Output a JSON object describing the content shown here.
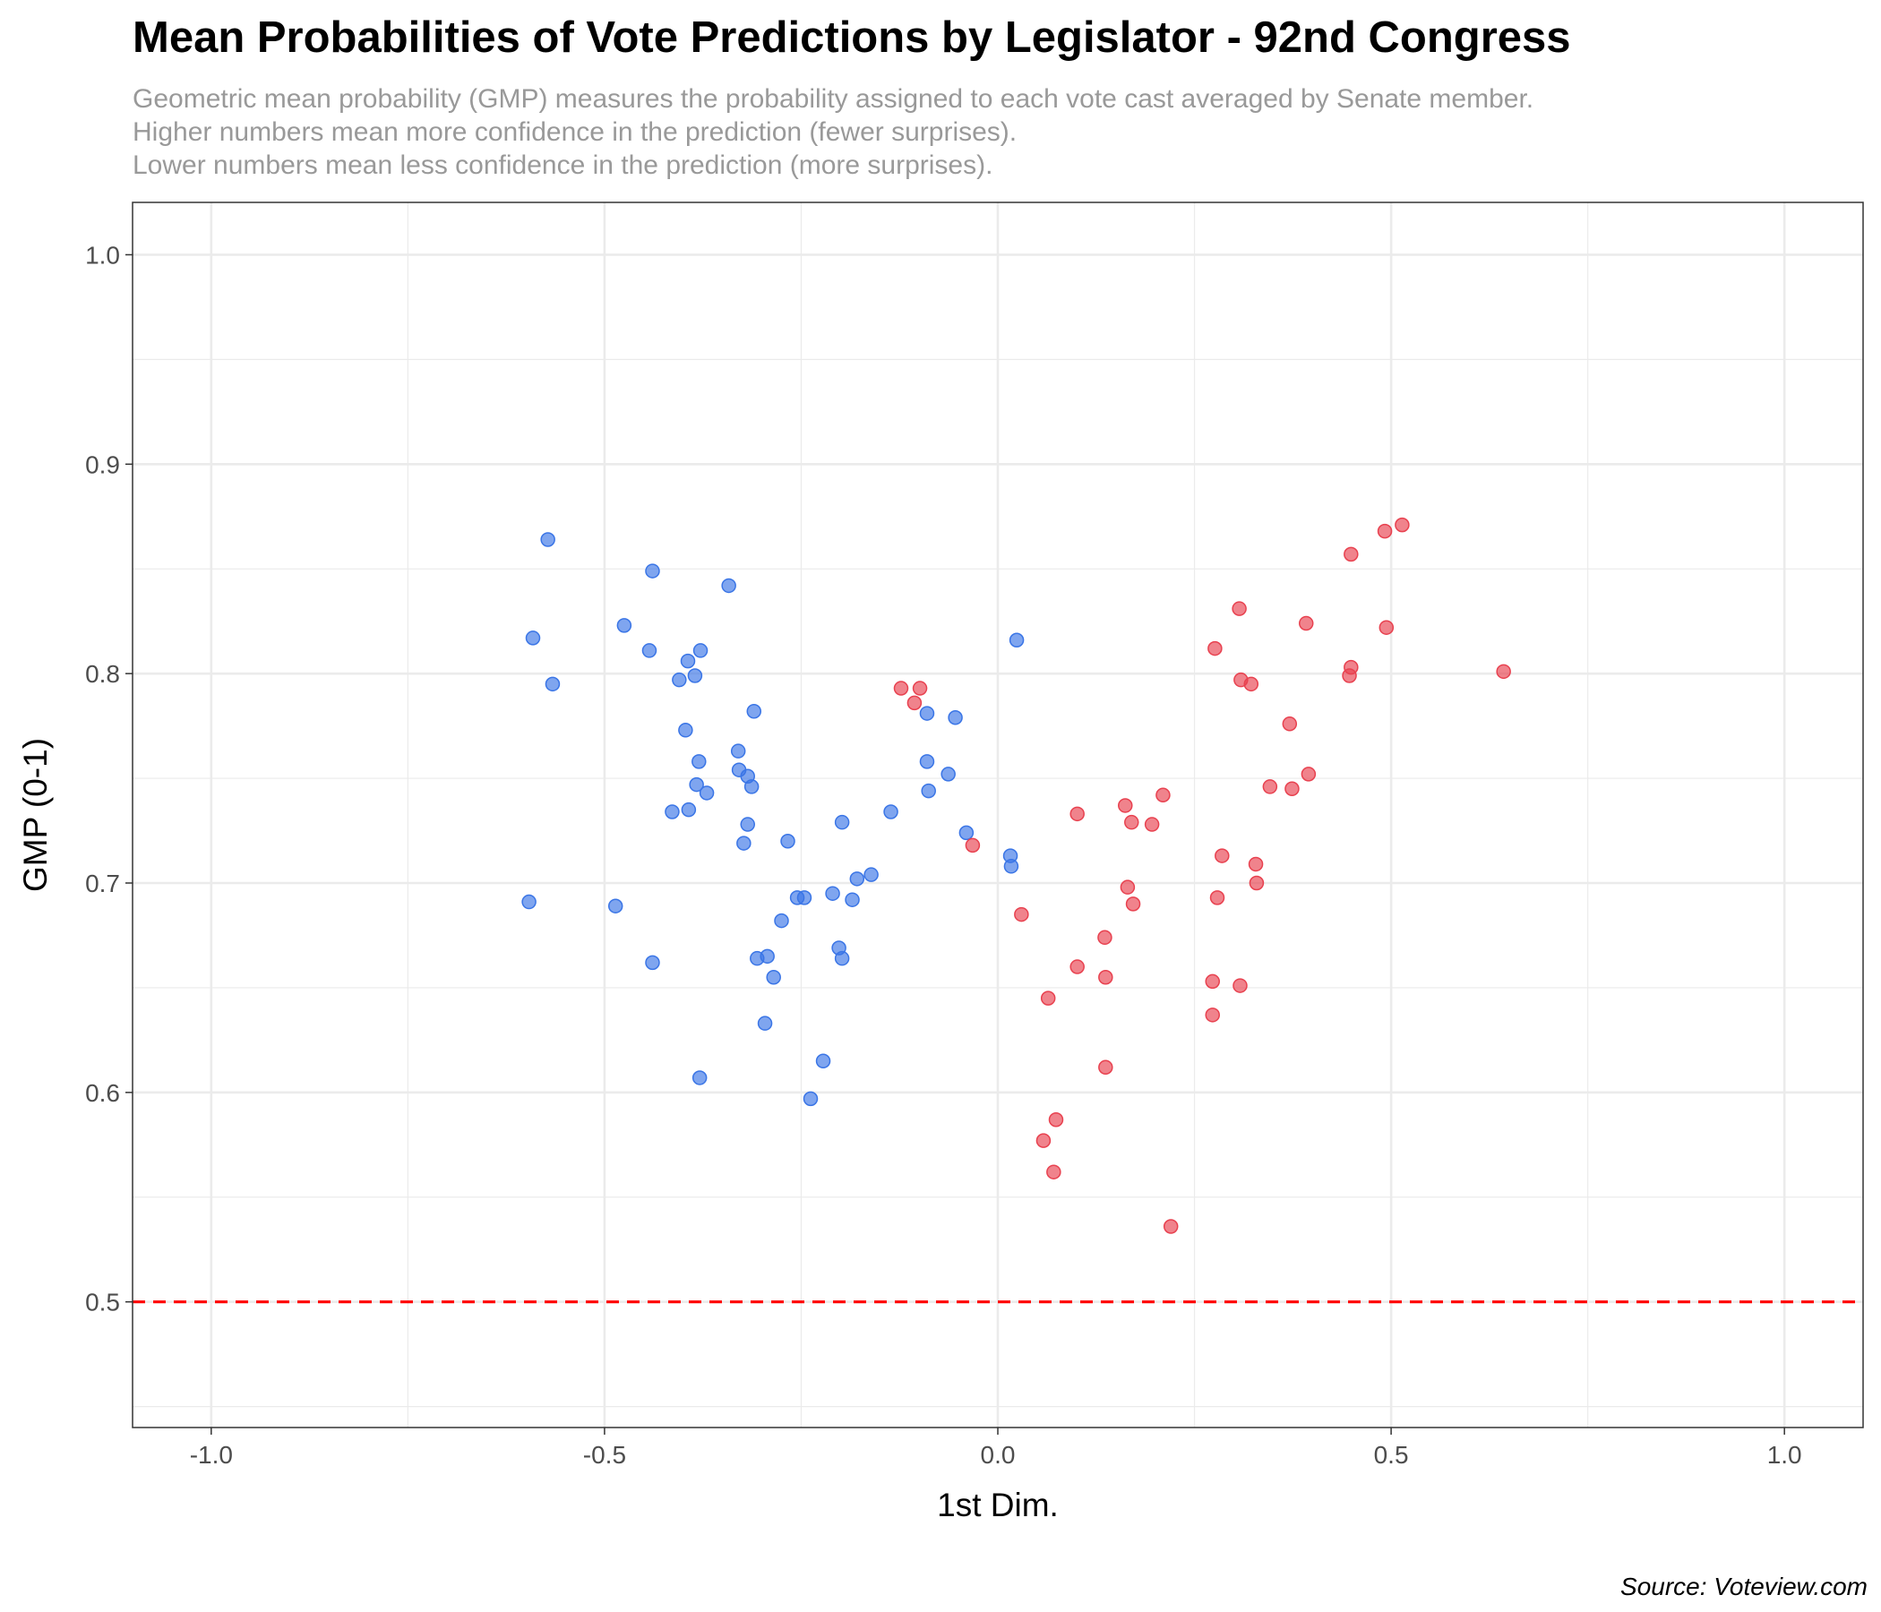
{
  "chart_data": {
    "type": "scatter",
    "title": "Mean Probabilities of Vote Predictions by Legislator - 92nd Congress",
    "subtitle_lines": [
      "Geometric mean probability (GMP) measures the probability assigned to each vote cast averaged by Senate member.",
      "Higher numbers mean more confidence in the prediction (fewer surprises).",
      "Lower numbers mean less confidence in the prediction (more surprises)."
    ],
    "caption": "Source: Voteview.com",
    "xlabel": "1st Dim.",
    "ylabel": "GMP (0-1)",
    "xlim": [
      -1.1,
      1.1
    ],
    "ylim": [
      0.44,
      1.025
    ],
    "x_ticks": [
      -1.0,
      -0.5,
      0.0,
      0.5,
      1.0
    ],
    "x_tick_labels": [
      "-1.0",
      "-0.5",
      "0.0",
      "0.5",
      "1.0"
    ],
    "y_ticks": [
      0.5,
      0.6,
      0.7,
      0.8,
      0.9,
      1.0
    ],
    "y_tick_labels": [
      "0.5",
      "0.6",
      "0.7",
      "0.8",
      "0.9",
      "1.0"
    ],
    "grid": true,
    "reference_line": {
      "y": 0.5,
      "color": "#ff0000",
      "style": "dashed"
    },
    "series": [
      {
        "color": "#3a75e6",
        "points": [
          [
            -0.572,
            0.864
          ],
          [
            -0.591,
            0.817
          ],
          [
            -0.566,
            0.795
          ],
          [
            -0.596,
            0.691
          ],
          [
            -0.439,
            0.849
          ],
          [
            -0.475,
            0.823
          ],
          [
            -0.443,
            0.811
          ],
          [
            -0.342,
            0.842
          ],
          [
            -0.394,
            0.806
          ],
          [
            -0.378,
            0.811
          ],
          [
            -0.385,
            0.799
          ],
          [
            -0.405,
            0.797
          ],
          [
            -0.397,
            0.773
          ],
          [
            -0.31,
            0.782
          ],
          [
            -0.33,
            0.763
          ],
          [
            -0.38,
            0.758
          ],
          [
            -0.329,
            0.754
          ],
          [
            -0.318,
            0.751
          ],
          [
            -0.383,
            0.747
          ],
          [
            -0.313,
            0.746
          ],
          [
            -0.37,
            0.743
          ],
          [
            -0.414,
            0.734
          ],
          [
            -0.393,
            0.735
          ],
          [
            -0.318,
            0.728
          ],
          [
            -0.323,
            0.719
          ],
          [
            -0.267,
            0.72
          ],
          [
            -0.486,
            0.689
          ],
          [
            -0.439,
            0.662
          ],
          [
            -0.306,
            0.664
          ],
          [
            -0.293,
            0.665
          ],
          [
            -0.285,
            0.655
          ],
          [
            -0.296,
            0.633
          ],
          [
            -0.275,
            0.682
          ],
          [
            -0.255,
            0.693
          ],
          [
            -0.246,
            0.693
          ],
          [
            -0.21,
            0.695
          ],
          [
            -0.185,
            0.692
          ],
          [
            -0.179,
            0.702
          ],
          [
            -0.161,
            0.704
          ],
          [
            -0.198,
            0.729
          ],
          [
            -0.202,
            0.669
          ],
          [
            -0.198,
            0.664
          ],
          [
            -0.222,
            0.615
          ],
          [
            -0.238,
            0.597
          ],
          [
            -0.379,
            0.607
          ],
          [
            -0.136,
            0.734
          ],
          [
            -0.09,
            0.781
          ],
          [
            -0.09,
            0.758
          ],
          [
            -0.088,
            0.744
          ],
          [
            -0.063,
            0.752
          ],
          [
            -0.054,
            0.779
          ],
          [
            -0.04,
            0.724
          ],
          [
            0.016,
            0.713
          ],
          [
            0.017,
            0.708
          ],
          [
            0.024,
            0.816
          ]
        ]
      },
      {
        "color": "#e8414f",
        "points": [
          [
            -0.123,
            0.793
          ],
          [
            -0.106,
            0.786
          ],
          [
            -0.099,
            0.793
          ],
          [
            -0.032,
            0.718
          ],
          [
            0.03,
            0.685
          ],
          [
            0.101,
            0.733
          ],
          [
            0.162,
            0.737
          ],
          [
            0.17,
            0.729
          ],
          [
            0.196,
            0.728
          ],
          [
            0.21,
            0.742
          ],
          [
            0.165,
            0.698
          ],
          [
            0.172,
            0.69
          ],
          [
            0.136,
            0.674
          ],
          [
            0.101,
            0.66
          ],
          [
            0.137,
            0.655
          ],
          [
            0.064,
            0.645
          ],
          [
            0.137,
            0.612
          ],
          [
            0.074,
            0.587
          ],
          [
            0.058,
            0.577
          ],
          [
            0.071,
            0.562
          ],
          [
            0.22,
            0.536
          ],
          [
            0.276,
            0.812
          ],
          [
            0.307,
            0.831
          ],
          [
            0.309,
            0.797
          ],
          [
            0.322,
            0.795
          ],
          [
            0.285,
            0.713
          ],
          [
            0.279,
            0.693
          ],
          [
            0.328,
            0.709
          ],
          [
            0.329,
            0.7
          ],
          [
            0.273,
            0.653
          ],
          [
            0.308,
            0.651
          ],
          [
            0.273,
            0.637
          ],
          [
            0.346,
            0.746
          ],
          [
            0.374,
            0.745
          ],
          [
            0.395,
            0.752
          ],
          [
            0.371,
            0.776
          ],
          [
            0.392,
            0.824
          ],
          [
            0.449,
            0.857
          ],
          [
            0.449,
            0.803
          ],
          [
            0.447,
            0.799
          ],
          [
            0.492,
            0.868
          ],
          [
            0.514,
            0.871
          ],
          [
            0.494,
            0.822
          ],
          [
            0.643,
            0.801
          ]
        ]
      }
    ]
  }
}
